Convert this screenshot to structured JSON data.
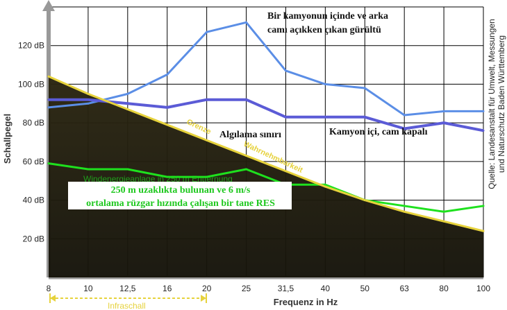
{
  "chart_data": {
    "type": "line",
    "categories": [
      "8",
      "10",
      "12,5",
      "16",
      "20",
      "25",
      "31,5",
      "40",
      "50",
      "63",
      "80",
      "100"
    ],
    "xlabel": "Frequenz in Hz",
    "ylabel": "Schallpegel",
    "ylim": [
      0,
      140
    ],
    "y_ticks": [
      "20 dB",
      "40 dB",
      "60 dB",
      "80 dB",
      "100 dB",
      "120 dB"
    ],
    "grid": true,
    "series": [
      {
        "values": [
          88,
          90,
          95,
          105,
          127,
          132,
          107,
          100,
          98,
          84,
          86,
          86
        ],
        "color": "#5b8ee6"
      },
      {
        "values": [
          92,
          92,
          90,
          88,
          92,
          92,
          83,
          83,
          83,
          77,
          80,
          76
        ],
        "color": "#5b5bd6"
      },
      {
        "values": [
          59,
          56,
          56,
          52,
          52,
          56,
          48,
          48,
          40,
          37,
          34,
          37
        ],
        "color": "#1ee11e"
      },
      {
        "values": [
          104,
          95,
          87,
          79,
          71,
          63,
          55,
          47,
          40,
          34,
          29,
          24
        ],
        "color": "#e6d23c"
      }
    ],
    "threshold_fill": "#1e1a0c",
    "annotations": {
      "truck_open": "Bir kamyonun içinde ve arka camı  açıkken çıkan gürültü",
      "threshold": "Algılama sınırı",
      "truck_closed": "Kamyon içi, cam kapalı",
      "res_line1": "250 m uzaklıkta bulunan ve 6 m/s",
      "res_line2": "ortalama rüzgar hızında çalışan bir tane RES",
      "threshold_de_left": "Grenze",
      "threshold_de_right": "Wahrnehmbarkeit",
      "wind_de": "Windenergieanlage in 250 m Entfernung",
      "infraschall": "Infraschall",
      "source": "Quelle: Landesanstalt für Umwelt, Messungen und Naturschutz Baden Württemberg"
    }
  }
}
